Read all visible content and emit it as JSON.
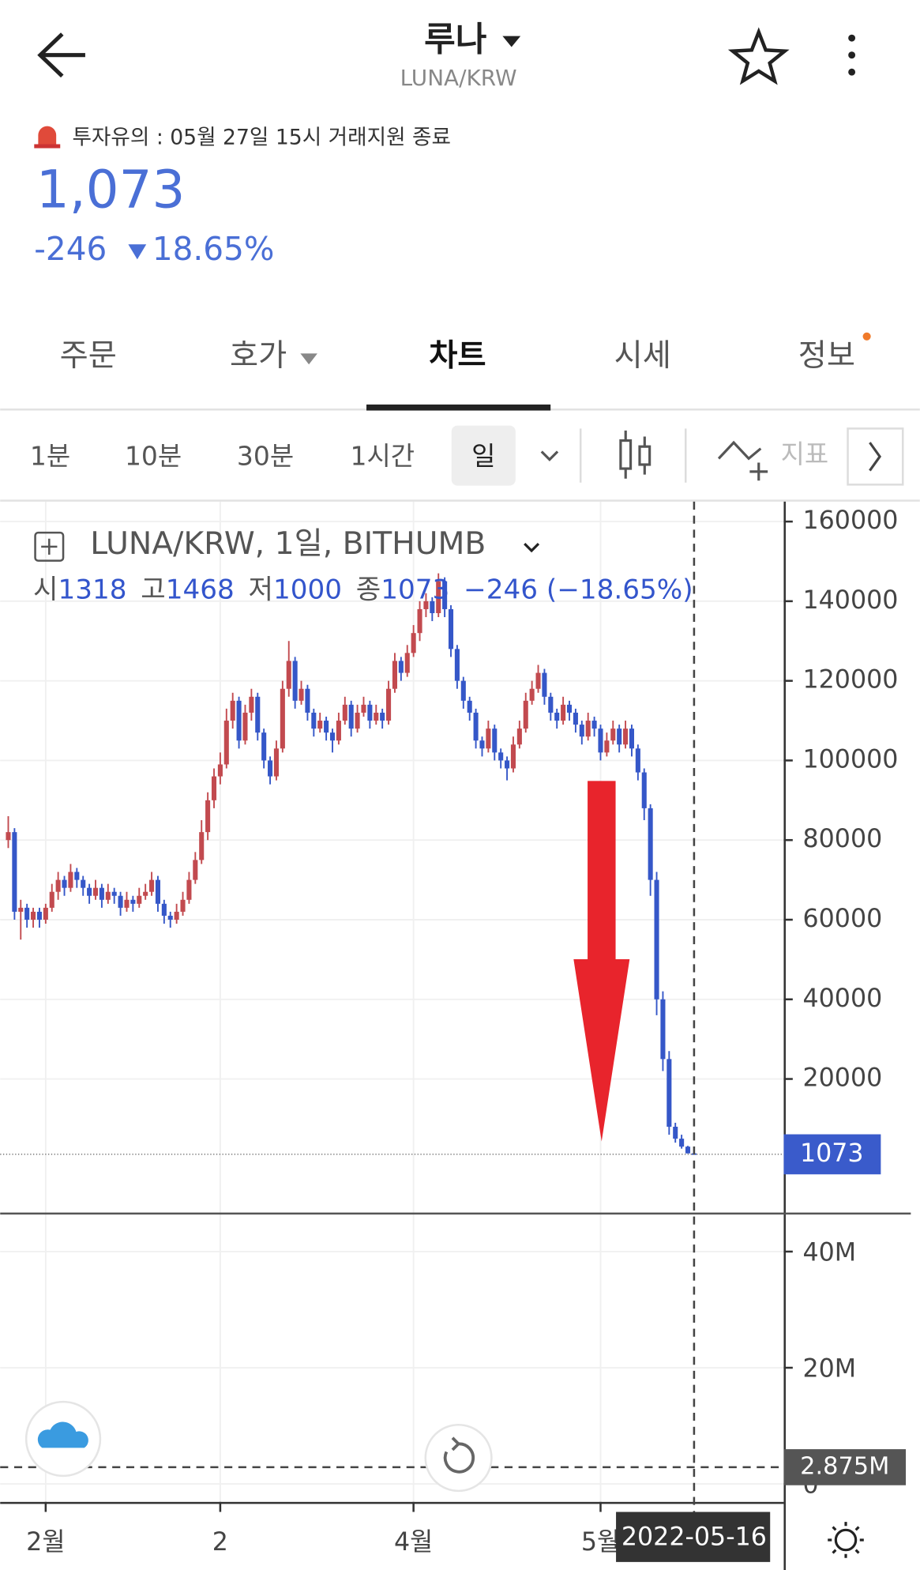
{
  "header": {
    "title": "루나",
    "symbol": "LUNA/KRW",
    "notice": "투자유의 : 05월 27일 15시 거래지원 종료",
    "price": "1,073",
    "change": "-246",
    "change_rate": "18.65%"
  },
  "tabs": [
    "주문",
    "호가",
    "차트",
    "시세",
    "정보"
  ],
  "intervals": [
    "1분",
    "10분",
    "30분",
    "1시간",
    "일"
  ],
  "indicator": "지표",
  "chart": {
    "type": "candlestick",
    "title": "LUNA/KRW, 1일, BITHUMB",
    "legend": {
      "open_label": "시",
      "open": 1318,
      "high_label": "고",
      "high": 1468,
      "low_label": "저",
      "low": 1000,
      "close_label": "종",
      "close": 1073,
      "change": "−246 (−18.65%)"
    },
    "up_color": "#c24a4f",
    "down_color": "#3557c8",
    "xlim": [
      -1.3,
      123.9
    ],
    "xticks": [
      {
        "value": 6,
        "label": "2월"
      },
      {
        "value": 34,
        "label": "2"
      },
      {
        "value": 65,
        "label": "4월"
      },
      {
        "value": 95,
        "label": "5월"
      },
      {
        "value": 110,
        "label": "2022-05-16"
      }
    ],
    "ylim": [
      -13300,
      164000
    ],
    "yticks": [
      20000,
      40000,
      60000,
      80000,
      100000,
      120000,
      140000,
      160000
    ],
    "current_price": 1073,
    "volume_lim": [
      -3100000,
      46550000
    ],
    "volume_ticks": [
      {
        "value": 0,
        "label": "0"
      },
      {
        "value": 20000000,
        "label": "20M"
      },
      {
        "value": 40000000,
        "label": "40M"
      }
    ],
    "current_volume": 2875000,
    "current_volume_label": "2.875M",
    "ohlc": [
      [
        80000,
        86000,
        78000,
        82000
      ],
      [
        82000,
        83000,
        60000,
        62000
      ],
      [
        62000,
        65000,
        55000,
        63000
      ],
      [
        63000,
        64000,
        58000,
        60000
      ],
      [
        60000,
        63000,
        58000,
        62000
      ],
      [
        62000,
        63000,
        58000,
        60000
      ],
      [
        60000,
        64000,
        59000,
        63000
      ],
      [
        63000,
        69000,
        62000,
        67000
      ],
      [
        67000,
        72000,
        65000,
        70000
      ],
      [
        70000,
        71000,
        66000,
        68000
      ],
      [
        68000,
        74000,
        67000,
        72000
      ],
      [
        72000,
        73000,
        68000,
        70000
      ],
      [
        70000,
        71000,
        66000,
        68000
      ],
      [
        68000,
        69000,
        64000,
        66000
      ],
      [
        66000,
        70000,
        65000,
        68000
      ],
      [
        68000,
        69000,
        63000,
        65000
      ],
      [
        65000,
        69000,
        64000,
        67000
      ],
      [
        67000,
        68000,
        64000,
        66000
      ],
      [
        66000,
        67000,
        61000,
        63000
      ],
      [
        63000,
        67000,
        62000,
        65000
      ],
      [
        65000,
        66000,
        62000,
        64000
      ],
      [
        64000,
        68000,
        63000,
        66000
      ],
      [
        66000,
        69000,
        65000,
        67000
      ],
      [
        67000,
        72000,
        66000,
        70000
      ],
      [
        70000,
        71000,
        62000,
        64000
      ],
      [
        64000,
        65000,
        59000,
        61000
      ],
      [
        61000,
        62000,
        58000,
        60000
      ],
      [
        60000,
        64000,
        59000,
        62000
      ],
      [
        62000,
        67000,
        61000,
        65000
      ],
      [
        65000,
        72000,
        64000,
        70000
      ],
      [
        70000,
        77000,
        69000,
        75000
      ],
      [
        75000,
        85000,
        74000,
        82000
      ],
      [
        82000,
        92000,
        80000,
        90000
      ],
      [
        90000,
        98000,
        88000,
        96000
      ],
      [
        96000,
        102000,
        94000,
        99000
      ],
      [
        99000,
        113000,
        98000,
        110000
      ],
      [
        110000,
        117000,
        108000,
        115000
      ],
      [
        115000,
        116000,
        103000,
        105000
      ],
      [
        105000,
        114000,
        104000,
        112000
      ],
      [
        112000,
        118000,
        110000,
        116000
      ],
      [
        116000,
        117000,
        105000,
        107000
      ],
      [
        107000,
        108000,
        98000,
        100000
      ],
      [
        100000,
        101000,
        94000,
        96000
      ],
      [
        96000,
        105000,
        95000,
        103000
      ],
      [
        103000,
        120000,
        102000,
        118000
      ],
      [
        118000,
        130000,
        116000,
        125000
      ],
      [
        125000,
        126000,
        113000,
        115000
      ],
      [
        115000,
        120000,
        114000,
        118000
      ],
      [
        118000,
        119000,
        110000,
        112000
      ],
      [
        112000,
        113000,
        106000,
        108000
      ],
      [
        108000,
        112000,
        107000,
        110000
      ],
      [
        110000,
        111000,
        105000,
        107000
      ],
      [
        107000,
        108000,
        102000,
        105000
      ],
      [
        105000,
        112000,
        104000,
        110000
      ],
      [
        110000,
        116000,
        109000,
        114000
      ],
      [
        114000,
        115000,
        106000,
        108000
      ],
      [
        108000,
        114000,
        107000,
        112000
      ],
      [
        112000,
        116000,
        111000,
        114000
      ],
      [
        114000,
        115000,
        108000,
        110000
      ],
      [
        110000,
        114000,
        109000,
        112000
      ],
      [
        112000,
        113000,
        108000,
        110000
      ],
      [
        110000,
        120000,
        109000,
        118000
      ],
      [
        118000,
        127000,
        117000,
        125000
      ],
      [
        125000,
        126000,
        120000,
        122000
      ],
      [
        122000,
        129000,
        121000,
        127000
      ],
      [
        127000,
        134000,
        126000,
        132000
      ],
      [
        132000,
        140000,
        130000,
        138000
      ],
      [
        138000,
        142000,
        136000,
        140000
      ],
      [
        140000,
        141000,
        135000,
        137000
      ],
      [
        137000,
        147000,
        136000,
        145000
      ],
      [
        145000,
        146000,
        136000,
        138000
      ],
      [
        138000,
        139000,
        126000,
        128000
      ],
      [
        128000,
        129000,
        118000,
        120000
      ],
      [
        120000,
        121000,
        113000,
        115000
      ],
      [
        115000,
        116000,
        110000,
        112000
      ],
      [
        112000,
        113000,
        103000,
        105000
      ],
      [
        105000,
        106000,
        101000,
        103000
      ],
      [
        103000,
        110000,
        102000,
        108000
      ],
      [
        108000,
        109000,
        100000,
        102000
      ],
      [
        102000,
        103000,
        98000,
        100000
      ],
      [
        100000,
        101000,
        95000,
        98000
      ],
      [
        98000,
        106000,
        97000,
        104000
      ],
      [
        104000,
        110000,
        103000,
        108000
      ],
      [
        108000,
        117000,
        107000,
        115000
      ],
      [
        115000,
        120000,
        114000,
        118000
      ],
      [
        118000,
        124000,
        117000,
        122000
      ],
      [
        122000,
        123000,
        114000,
        116000
      ],
      [
        116000,
        117000,
        110000,
        112000
      ],
      [
        112000,
        113000,
        108000,
        110000
      ],
      [
        110000,
        116000,
        109000,
        114000
      ],
      [
        114000,
        115000,
        110000,
        112000
      ],
      [
        112000,
        113000,
        107000,
        109000
      ],
      [
        109000,
        110000,
        104000,
        106000
      ],
      [
        106000,
        112000,
        105000,
        110000
      ],
      [
        110000,
        111000,
        106000,
        108000
      ],
      [
        108000,
        109000,
        100000,
        102000
      ],
      [
        102000,
        107000,
        101000,
        105000
      ],
      [
        105000,
        110000,
        104000,
        108000
      ],
      [
        108000,
        109000,
        102000,
        104000
      ],
      [
        104000,
        110000,
        103000,
        108000
      ],
      [
        108000,
        109000,
        101000,
        103000
      ],
      [
        103000,
        104000,
        95000,
        97000
      ],
      [
        97000,
        98000,
        85000,
        88000
      ],
      [
        88000,
        89000,
        66000,
        70000
      ],
      [
        70000,
        72000,
        36000,
        40000
      ],
      [
        40000,
        42000,
        22000,
        25000
      ],
      [
        25000,
        27000,
        6000,
        8000
      ],
      [
        8000,
        9000,
        4000,
        5000
      ],
      [
        5000,
        6000,
        2500,
        3000
      ],
      [
        3000,
        3200,
        1300,
        1318
      ],
      [
        1318,
        1468,
        1000,
        1073
      ]
    ]
  }
}
